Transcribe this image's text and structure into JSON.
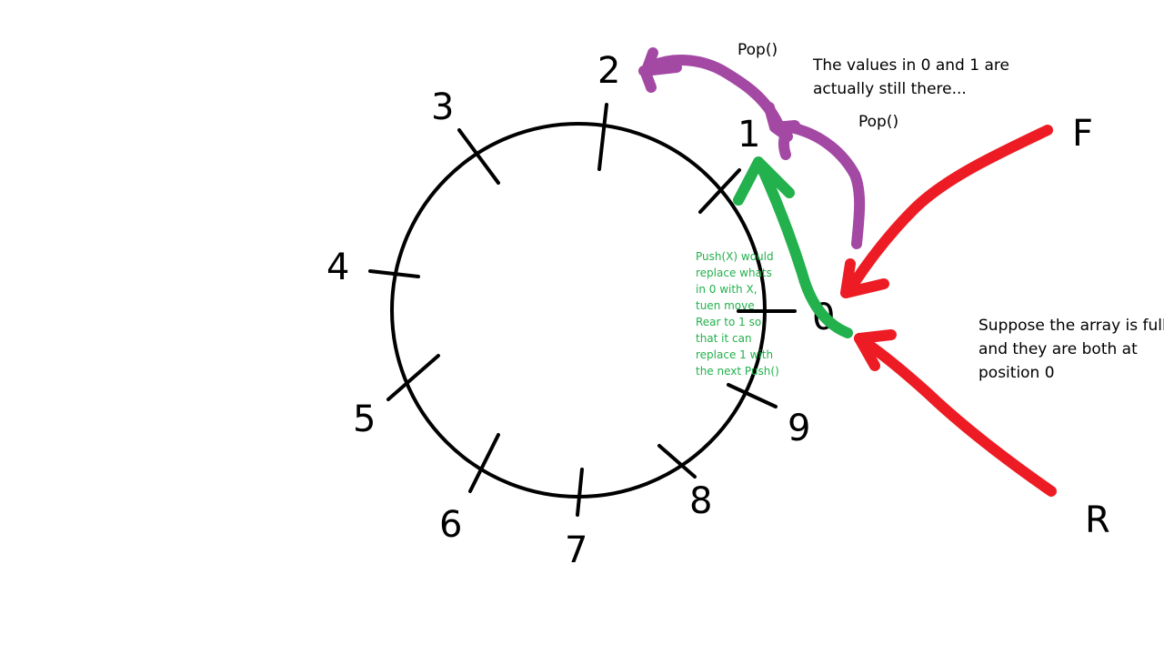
{
  "ring": {
    "labels": [
      "0",
      "1",
      "2",
      "3",
      "4",
      "5",
      "6",
      "7",
      "8",
      "9"
    ]
  },
  "pointers": {
    "front": "F",
    "rear": "R"
  },
  "annotations": {
    "pop_top": "Pop()",
    "pop_middle": "Pop()",
    "values_note": [
      "The values in 0 and 1 are",
      "actually still there..."
    ],
    "suppose_note": [
      "Suppose the array is full",
      "and they are both at",
      "position 0"
    ],
    "push_note": [
      "Push(X) would",
      "replace whats",
      "in 0 with X,",
      "tuen move",
      "Rear to 1 so",
      "that it can",
      "replace 1 with",
      "the next Push()"
    ]
  },
  "colors": {
    "ring": "#000000",
    "pop_arrow": "#a349a4",
    "push_arrow": "#22b14c",
    "pointer_arrow": "#ed1c24",
    "push_text": "#22b14c"
  }
}
